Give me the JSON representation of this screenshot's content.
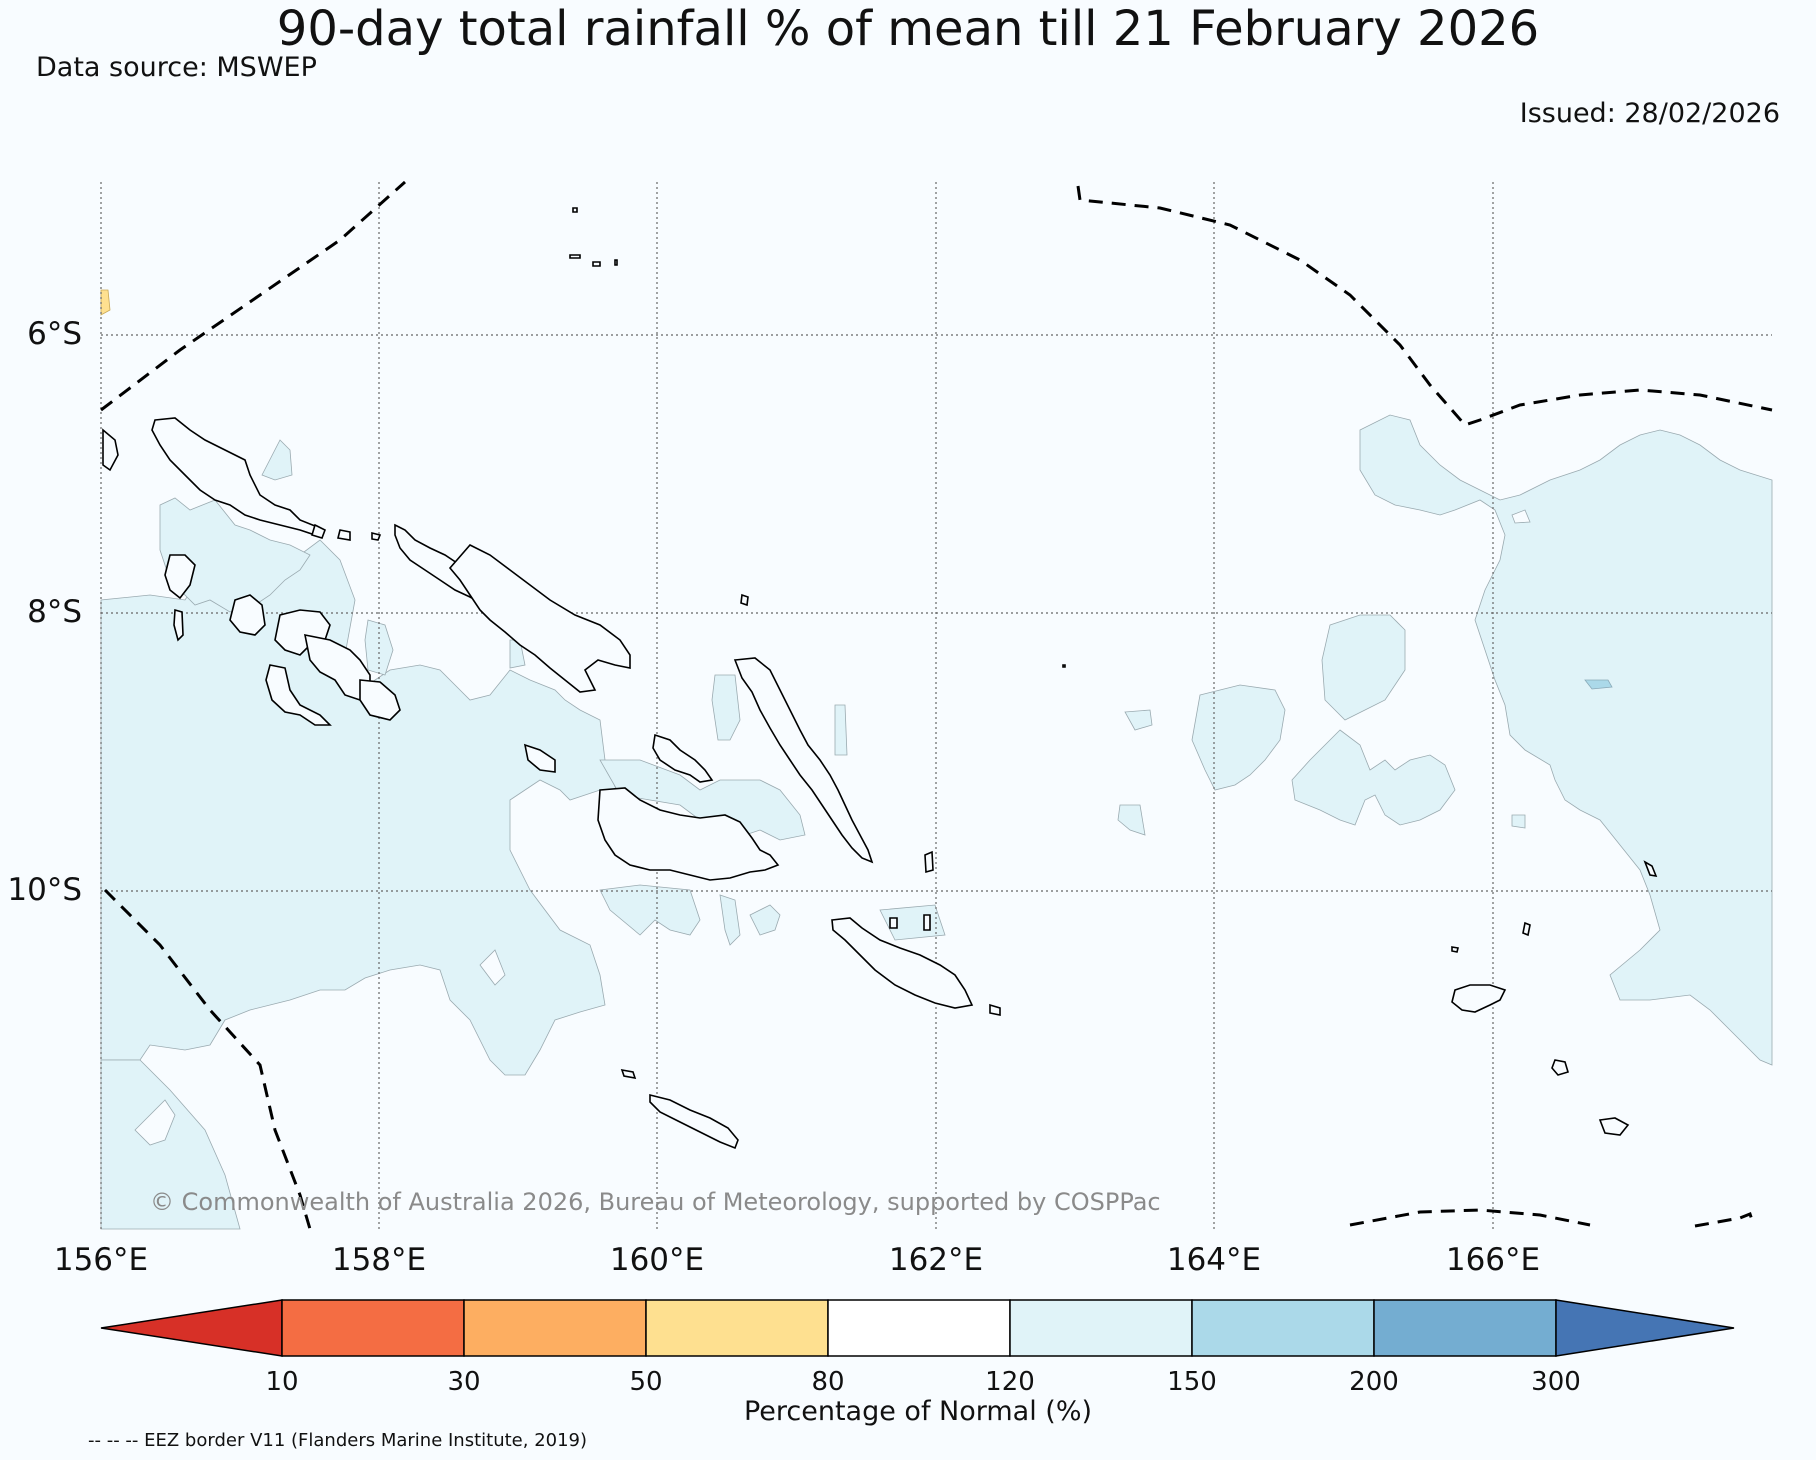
{
  "header": {
    "title": "90-day total rainfall % of mean till 21 February 2026",
    "source": "Data source: MSWEP",
    "issued": "Issued: 28/02/2026"
  },
  "map": {
    "lon_labels": [
      "156°E",
      "158°E",
      "160°E",
      "162°E",
      "164°E",
      "166°E"
    ],
    "lat_labels": [
      "6°S",
      "8°S",
      "10°S"
    ],
    "copyright": "© Commonwealth of Australia 2026, Bureau of Meteorology, supported by COSPPac",
    "eez_note": "-- -- -- EEZ border V11 (Flanders Marine Institute, 2019)",
    "colors": {
      "ocean": "#f8fcff",
      "land_outline": "#000000",
      "above_normal_120_150": "#e0f3f8",
      "below_normal_50_80": "#fee090",
      "wet_150_200": "#abd9e9"
    }
  },
  "legend": {
    "title": "Percentage of Normal (%)",
    "ticks": [
      "10",
      "30",
      "50",
      "80",
      "120",
      "150",
      "200",
      "300"
    ],
    "colors": [
      "#d73027",
      "#f46d43",
      "#fdae61",
      "#fee090",
      "#ffffff",
      "#e0f3f8",
      "#abd9e9",
      "#74add1",
      "#4575b4"
    ]
  }
}
